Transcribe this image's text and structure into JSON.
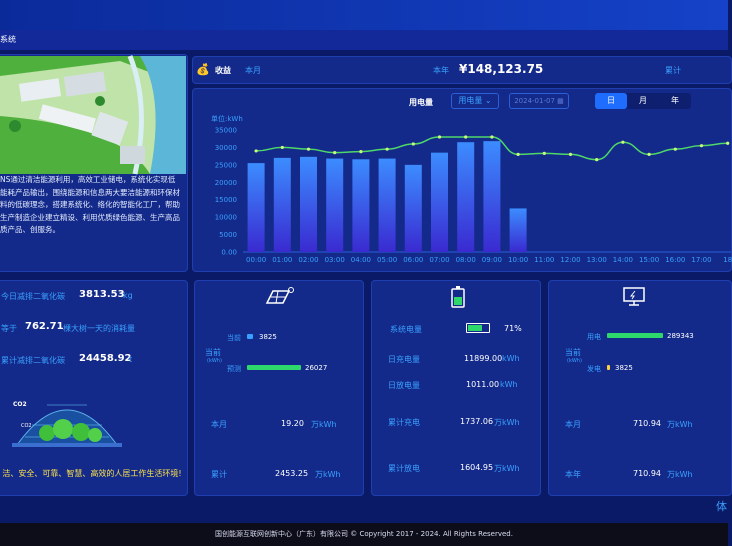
{
  "header": {
    "subtitle": "系统"
  },
  "intro": {
    "text": "NS通过清洁能源利用，高效工业储电，系统化实现低能耗产品输出，围绕能源和信息两大要洁能源和环保材料的低碳理念，搭建系统化、络化的智能化工厂，帮助生产制造企业建立精设、利用优质绿色能源、生产高品质产品、创服务。"
  },
  "income": {
    "title": "收益",
    "period": "本月",
    "year_label": "本年",
    "year_value": "¥148,123.75",
    "total_label": "累计"
  },
  "chart_header": {
    "title": "用电量",
    "select": "用电量",
    "date": "2024-01-07",
    "tabs": [
      "日",
      "月",
      "年"
    ],
    "active_tab": "日"
  },
  "chart_data": {
    "type": "bar",
    "ylabel": "单位:kWh",
    "ylim": [
      0,
      35000
    ],
    "yticks": [
      "0.00",
      "5000",
      "10000",
      "15000",
      "20000",
      "25000",
      "30000",
      "35000"
    ],
    "categories": [
      "00:00",
      "01:00",
      "02:00",
      "03:00",
      "04:00",
      "05:00",
      "06:00",
      "07:00",
      "08:00",
      "09:00",
      "10:00",
      "11:00",
      "12:00",
      "13:00",
      "14:00",
      "15:00",
      "16:00",
      "17:00",
      "18"
    ],
    "values": [
      25500,
      27000,
      27300,
      26800,
      26600,
      26800,
      25000,
      28500,
      31500,
      31800,
      12500,
      null,
      null,
      null,
      null,
      null,
      null,
      null,
      null
    ],
    "line": [
      29000,
      30000,
      29500,
      28500,
      28800,
      29500,
      31000,
      33000,
      33000,
      33000,
      28000,
      28300,
      28000,
      26500,
      31500,
      28000,
      29500,
      30500,
      31200
    ]
  },
  "carbon": {
    "today_label": "今日减排二氧化碳",
    "today_value": "3813.53",
    "today_unit": "kg",
    "equal_label": "等于",
    "equal_value": "762.71",
    "equal_desc": "棵大树一天的消耗量",
    "total_label": "累计减排二氧化碳",
    "total_value": "24458.92",
    "total_unit": "t",
    "co2_1": "CO2",
    "co2_2": "CO2",
    "slogan": "洁、安全、可靠、智慧、高效的人居工作生活环境!"
  },
  "solar": {
    "current_label": "当前",
    "current_unit": "(kWh)",
    "actual_label": "当前",
    "actual_value": "3825",
    "forecast_label": "预测",
    "forecast_value": "26027",
    "month_label": "本月",
    "month_value": "19.20",
    "month_unit": "万kWh",
    "total_label": "累计",
    "total_value": "2453.25",
    "total_unit": "万kWh"
  },
  "storage": {
    "soc_label": "系统电量",
    "soc_value": "71%",
    "soc_level": 0.71,
    "day_charge_label": "日充电量",
    "day_charge_value": "11899.00",
    "day_charge_unit": "kWh",
    "day_discharge_label": "日放电量",
    "day_discharge_value": "1011.00",
    "day_discharge_unit": "kWh",
    "total_charge_label": "累计充电",
    "total_charge_value": "1737.06",
    "total_charge_unit": "万kWh",
    "total_discharge_label": "累计放电",
    "total_discharge_value": "1604.95",
    "total_discharge_unit": "万kWh"
  },
  "grid": {
    "current_label": "当前",
    "current_unit": "(kWh)",
    "use_label": "用电",
    "use_value": "289343",
    "gen_label": "发电",
    "gen_value": "3825",
    "month_label": "本月",
    "month_value": "710.94",
    "month_unit": "万kWh",
    "year_label": "本年",
    "year_value": "710.94",
    "year_unit": "万kWh"
  },
  "footer": {
    "text": "国创能源互联网创新中心（广东）有限公司 © Copyright 2017 - 2024. All Rights Reserved."
  },
  "corner": {
    "text": "体"
  }
}
